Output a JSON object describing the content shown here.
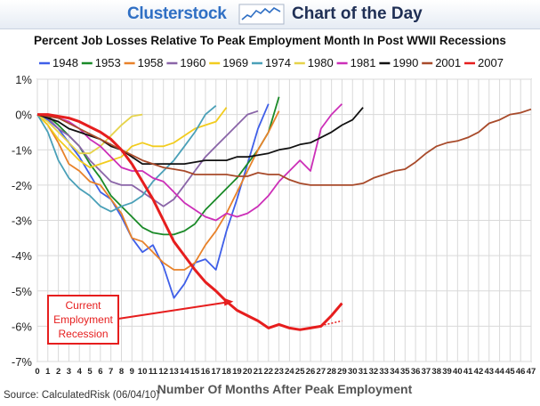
{
  "header": {
    "brand": "Clusterstock",
    "section": "Chart of the Day"
  },
  "colors": {
    "brand": "#2f6fc4",
    "section": "#1f2f55"
  },
  "source": "Source: CalculatedRisk (06/04/10)",
  "chart_data": {
    "type": "line",
    "title": "Percent Job Losses Relative To Peak Employment Month In Post WWII Recessions",
    "xlabel": "Number Of Months After Peak Employment",
    "ylabel": "",
    "xlim": [
      0,
      47
    ],
    "ylim": [
      -7,
      1
    ],
    "x_ticks": [
      0,
      1,
      2,
      3,
      4,
      5,
      6,
      7,
      8,
      9,
      10,
      11,
      12,
      13,
      14,
      15,
      16,
      17,
      18,
      19,
      20,
      21,
      22,
      23,
      24,
      25,
      26,
      27,
      28,
      29,
      30,
      31,
      32,
      33,
      34,
      35,
      36,
      37,
      38,
      39,
      40,
      41,
      42,
      43,
      44,
      45,
      46,
      47
    ],
    "y_ticks": [
      "1%",
      "0%",
      "-1%",
      "-2%",
      "-3%",
      "-4%",
      "-5%",
      "-6%",
      "-7%"
    ],
    "y_tick_values": [
      1,
      0,
      -1,
      -2,
      -3,
      -4,
      -5,
      -6,
      -7
    ],
    "grid": true,
    "legend_position": "top",
    "series": [
      {
        "name": "1948",
        "color": "#3f5fe8",
        "values": [
          0,
          -0.15,
          -0.4,
          -0.8,
          -1.2,
          -1.7,
          -2.2,
          -2.4,
          -2.9,
          -3.5,
          -3.9,
          -3.7,
          -4.3,
          -5.2,
          -4.8,
          -4.2,
          -4.1,
          -4.4,
          -3.3,
          -2.4,
          -1.4,
          -0.4,
          0.3
        ]
      },
      {
        "name": "1953",
        "color": "#1a8a28",
        "values": [
          0,
          -0.05,
          -0.3,
          -0.6,
          -0.9,
          -1.4,
          -1.8,
          -2.3,
          -2.6,
          -2.9,
          -3.2,
          -3.35,
          -3.4,
          -3.4,
          -3.3,
          -3.1,
          -2.7,
          -2.4,
          -2.1,
          -1.8,
          -1.4,
          -1.0,
          -0.5,
          0.5
        ]
      },
      {
        "name": "1958",
        "color": "#e8822a",
        "values": [
          0,
          -0.3,
          -0.8,
          -1.4,
          -1.6,
          -1.9,
          -2.0,
          -2.4,
          -2.8,
          -3.5,
          -3.6,
          -3.9,
          -4.2,
          -4.4,
          -4.4,
          -4.2,
          -3.7,
          -3.3,
          -2.8,
          -2.2,
          -1.6,
          -1.0,
          -0.5,
          0.1
        ]
      },
      {
        "name": "1960",
        "color": "#8a65a8",
        "values": [
          0,
          -0.1,
          -0.4,
          -0.6,
          -0.9,
          -1.3,
          -1.6,
          -1.9,
          -2.0,
          -2.0,
          -2.2,
          -2.4,
          -2.6,
          -2.4,
          -2.0,
          -1.6,
          -1.2,
          -0.9,
          -0.6,
          -0.3,
          0,
          0.1
        ]
      },
      {
        "name": "1969",
        "color": "#f2cc1e",
        "values": [
          0,
          -0.3,
          -0.7,
          -1.0,
          -1.3,
          -1.5,
          -1.4,
          -1.3,
          -1.2,
          -0.9,
          -0.8,
          -0.9,
          -0.9,
          -0.8,
          -0.6,
          -0.4,
          -0.3,
          -0.2,
          0.2
        ]
      },
      {
        "name": "1974",
        "color": "#4aa0b8",
        "values": [
          0,
          -0.5,
          -1.3,
          -1.8,
          -2.1,
          -2.3,
          -2.6,
          -2.75,
          -2.6,
          -2.5,
          -2.3,
          -1.9,
          -1.6,
          -1.3,
          -0.9,
          -0.5,
          0,
          0.25
        ]
      },
      {
        "name": "1980",
        "color": "#e6d34a",
        "values": [
          0,
          -0.2,
          -0.5,
          -0.8,
          -1.1,
          -1.1,
          -0.9,
          -0.6,
          -0.3,
          -0.05,
          0
        ]
      },
      {
        "name": "1981",
        "color": "#cc2fb8",
        "values": [
          0,
          -0.05,
          -0.1,
          -0.2,
          -0.4,
          -0.7,
          -0.9,
          -1.2,
          -1.5,
          -1.6,
          -1.6,
          -1.8,
          -1.9,
          -2.2,
          -2.5,
          -2.7,
          -2.9,
          -3.0,
          -2.8,
          -2.9,
          -2.8,
          -2.6,
          -2.3,
          -1.9,
          -1.6,
          -1.3,
          -1.6,
          -0.4,
          0,
          0.3
        ]
      },
      {
        "name": "1990",
        "color": "#111111",
        "values": [
          0,
          -0.1,
          -0.2,
          -0.4,
          -0.5,
          -0.6,
          -0.7,
          -0.9,
          -1.0,
          -1.2,
          -1.4,
          -1.4,
          -1.4,
          -1.4,
          -1.4,
          -1.35,
          -1.3,
          -1.3,
          -1.3,
          -1.2,
          -1.2,
          -1.15,
          -1.1,
          -1.0,
          -0.95,
          -0.85,
          -0.8,
          -0.65,
          -0.5,
          -0.3,
          -0.15,
          0.2
        ]
      },
      {
        "name": "2001",
        "color": "#a84a2a",
        "values": [
          0,
          -0.05,
          -0.1,
          -0.25,
          -0.4,
          -0.55,
          -0.7,
          -0.85,
          -1.0,
          -1.15,
          -1.3,
          -1.4,
          -1.5,
          -1.55,
          -1.6,
          -1.7,
          -1.7,
          -1.7,
          -1.7,
          -1.75,
          -1.75,
          -1.65,
          -1.7,
          -1.7,
          -1.85,
          -1.95,
          -2.0,
          -2.0,
          -2.0,
          -2.0,
          -2.0,
          -1.95,
          -1.8,
          -1.7,
          -1.6,
          -1.55,
          -1.35,
          -1.1,
          -0.9,
          -0.8,
          -0.75,
          -0.65,
          -0.5,
          -0.25,
          -0.15,
          0,
          0.05,
          0.15
        ]
      },
      {
        "name": "2007",
        "color": "#e61e1e",
        "values": [
          0,
          0,
          -0.05,
          -0.1,
          -0.2,
          -0.35,
          -0.5,
          -0.7,
          -1.0,
          -1.4,
          -1.9,
          -2.4,
          -3.0,
          -3.6,
          -4.0,
          -4.4,
          -4.75,
          -5.0,
          -5.3,
          -5.55,
          -5.7,
          -5.85,
          -6.05,
          -5.95,
          -6.05,
          -6.1,
          -6.05,
          -6.0,
          -5.7,
          -5.35
        ]
      }
    ],
    "annotation": {
      "text": "Current Employment Recession",
      "lines": [
        "Current",
        "Employment",
        "Recession"
      ],
      "target": [
        19,
        -5.3
      ]
    }
  }
}
